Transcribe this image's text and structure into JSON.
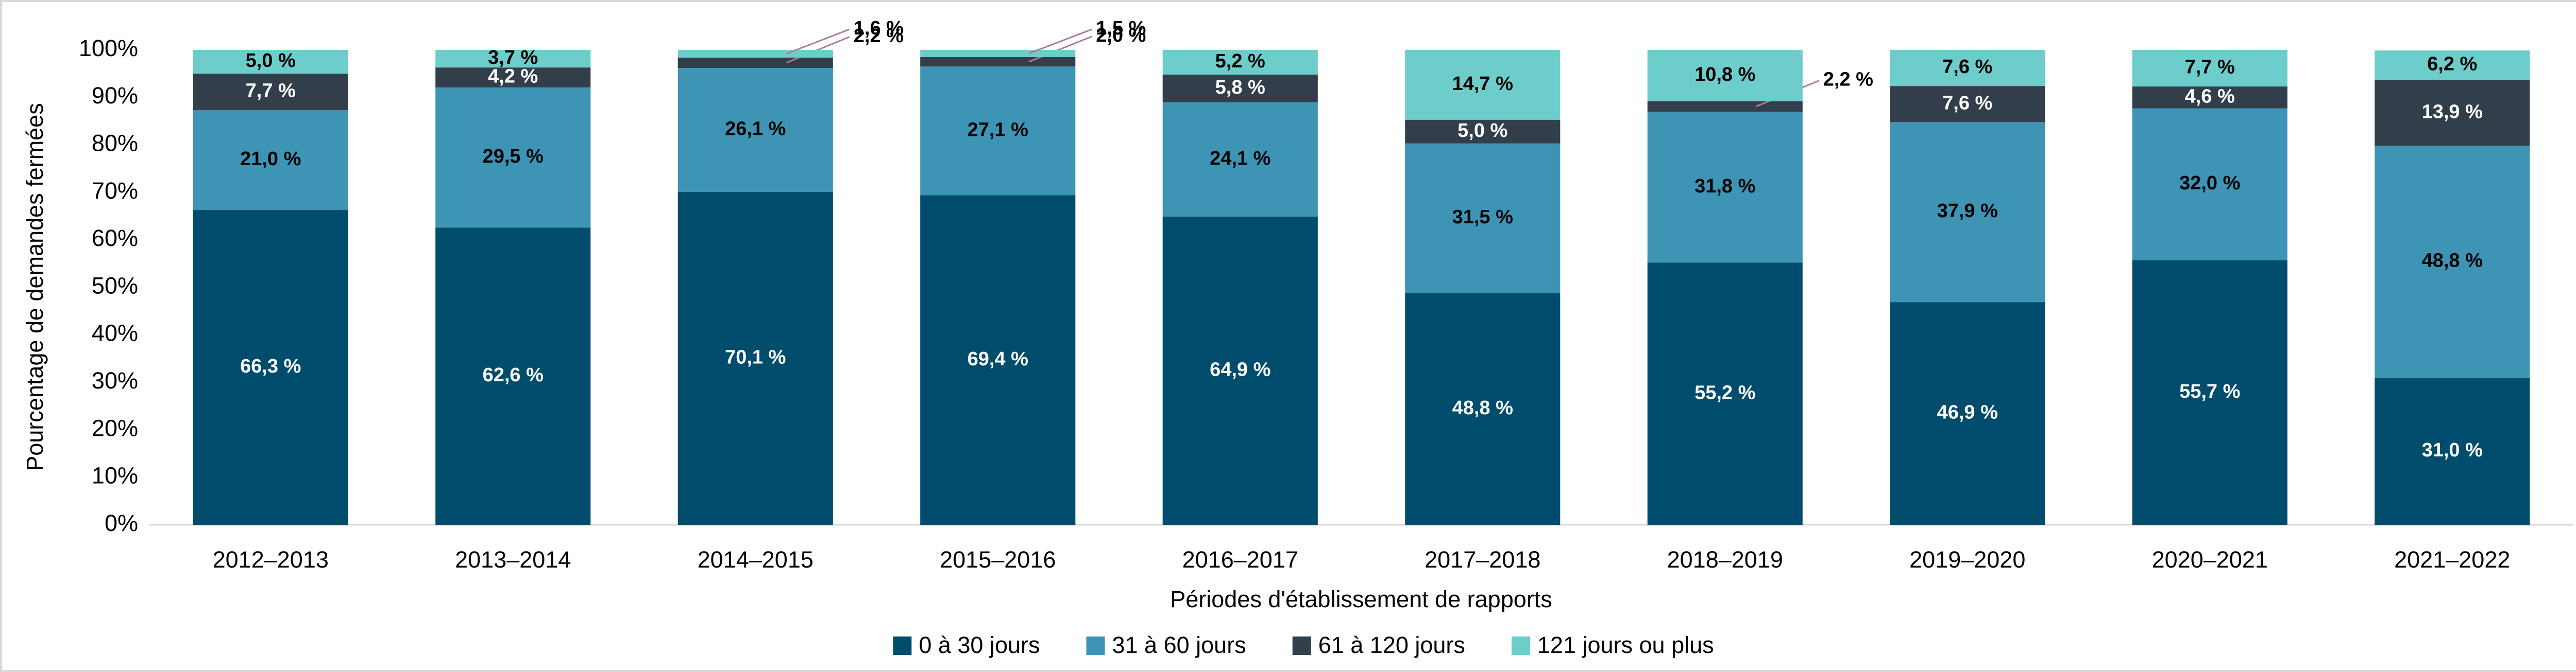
{
  "chart_data": {
    "type": "stacked_bar",
    "y_label": "Pourcentage de demandes fermées",
    "x_label": "Périodes d'établissement de rapports",
    "categories": [
      "2012–2013",
      "2013–2014",
      "2014–2015",
      "2015–2016",
      "2016–2017",
      "2017–2018",
      "2018–2019",
      "2019–2020",
      "2020–2021",
      "2021–2022"
    ],
    "series": [
      {
        "name": "0 à 30 jours",
        "color": "#004c6d",
        "label_color": "#ffffff",
        "values": [
          66.3,
          62.6,
          70.1,
          69.4,
          64.9,
          48.8,
          55.2,
          46.9,
          55.7,
          31.0
        ],
        "value_labels": [
          "66,3 %",
          "62,6 %",
          "70,1 %",
          "69,4 %",
          "64,9 %",
          "48,8 %",
          "55,2 %",
          "46,9 %",
          "55,7 %",
          "31,0 %"
        ]
      },
      {
        "name": "31 à 60 jours",
        "color": "#3d94b5",
        "label_color": "#000000",
        "values": [
          21.0,
          29.5,
          26.1,
          27.1,
          24.1,
          31.5,
          31.8,
          37.9,
          32.0,
          48.8
        ],
        "value_labels": [
          "21,0 %",
          "29,5 %",
          "26,1 %",
          "27,1 %",
          "24,1 %",
          "31,5 %",
          "31,8 %",
          "37,9 %",
          "32,0 %",
          "48,8 %"
        ]
      },
      {
        "name": "61 à 120 jours",
        "color": "#323f4b",
        "label_color": "#ffffff",
        "values": [
          7.7,
          4.2,
          2.2,
          2.0,
          5.8,
          5.0,
          2.2,
          7.6,
          4.6,
          13.9
        ],
        "value_labels": [
          "7,7 %",
          "4,2 %",
          "2,2 %",
          "2,0 %",
          "5,8 %",
          "5,0 %",
          "2,2 %",
          "7,6 %",
          "4,6 %",
          "13,9 %"
        ]
      },
      {
        "name": "121 jours ou plus",
        "color": "#6ccdcb",
        "label_color": "#000000",
        "values": [
          5.0,
          3.7,
          1.6,
          1.5,
          5.2,
          14.7,
          10.8,
          7.6,
          7.7,
          6.2
        ],
        "value_labels": [
          "5,0 %",
          "3,7 %",
          "1,6 %",
          "1,5 %",
          "5,2 %",
          "14,7 %",
          "10,8 %",
          "7,6 %",
          "7,7 %",
          "6,2 %"
        ]
      }
    ],
    "ylim": [
      0,
      100
    ],
    "yticks": [
      {
        "value": 0,
        "label": "0%"
      },
      {
        "value": 10,
        "label": "10%"
      },
      {
        "value": 20,
        "label": "20%"
      },
      {
        "value": 30,
        "label": "30%"
      },
      {
        "value": 40,
        "label": "40%"
      },
      {
        "value": 50,
        "label": "50%"
      },
      {
        "value": 60,
        "label": "60%"
      },
      {
        "value": 70,
        "label": "70%"
      },
      {
        "value": 80,
        "label": "80%"
      },
      {
        "value": 90,
        "label": "90%"
      },
      {
        "value": 100,
        "label": "100%"
      }
    ],
    "grid": false,
    "legend": "bottom"
  }
}
